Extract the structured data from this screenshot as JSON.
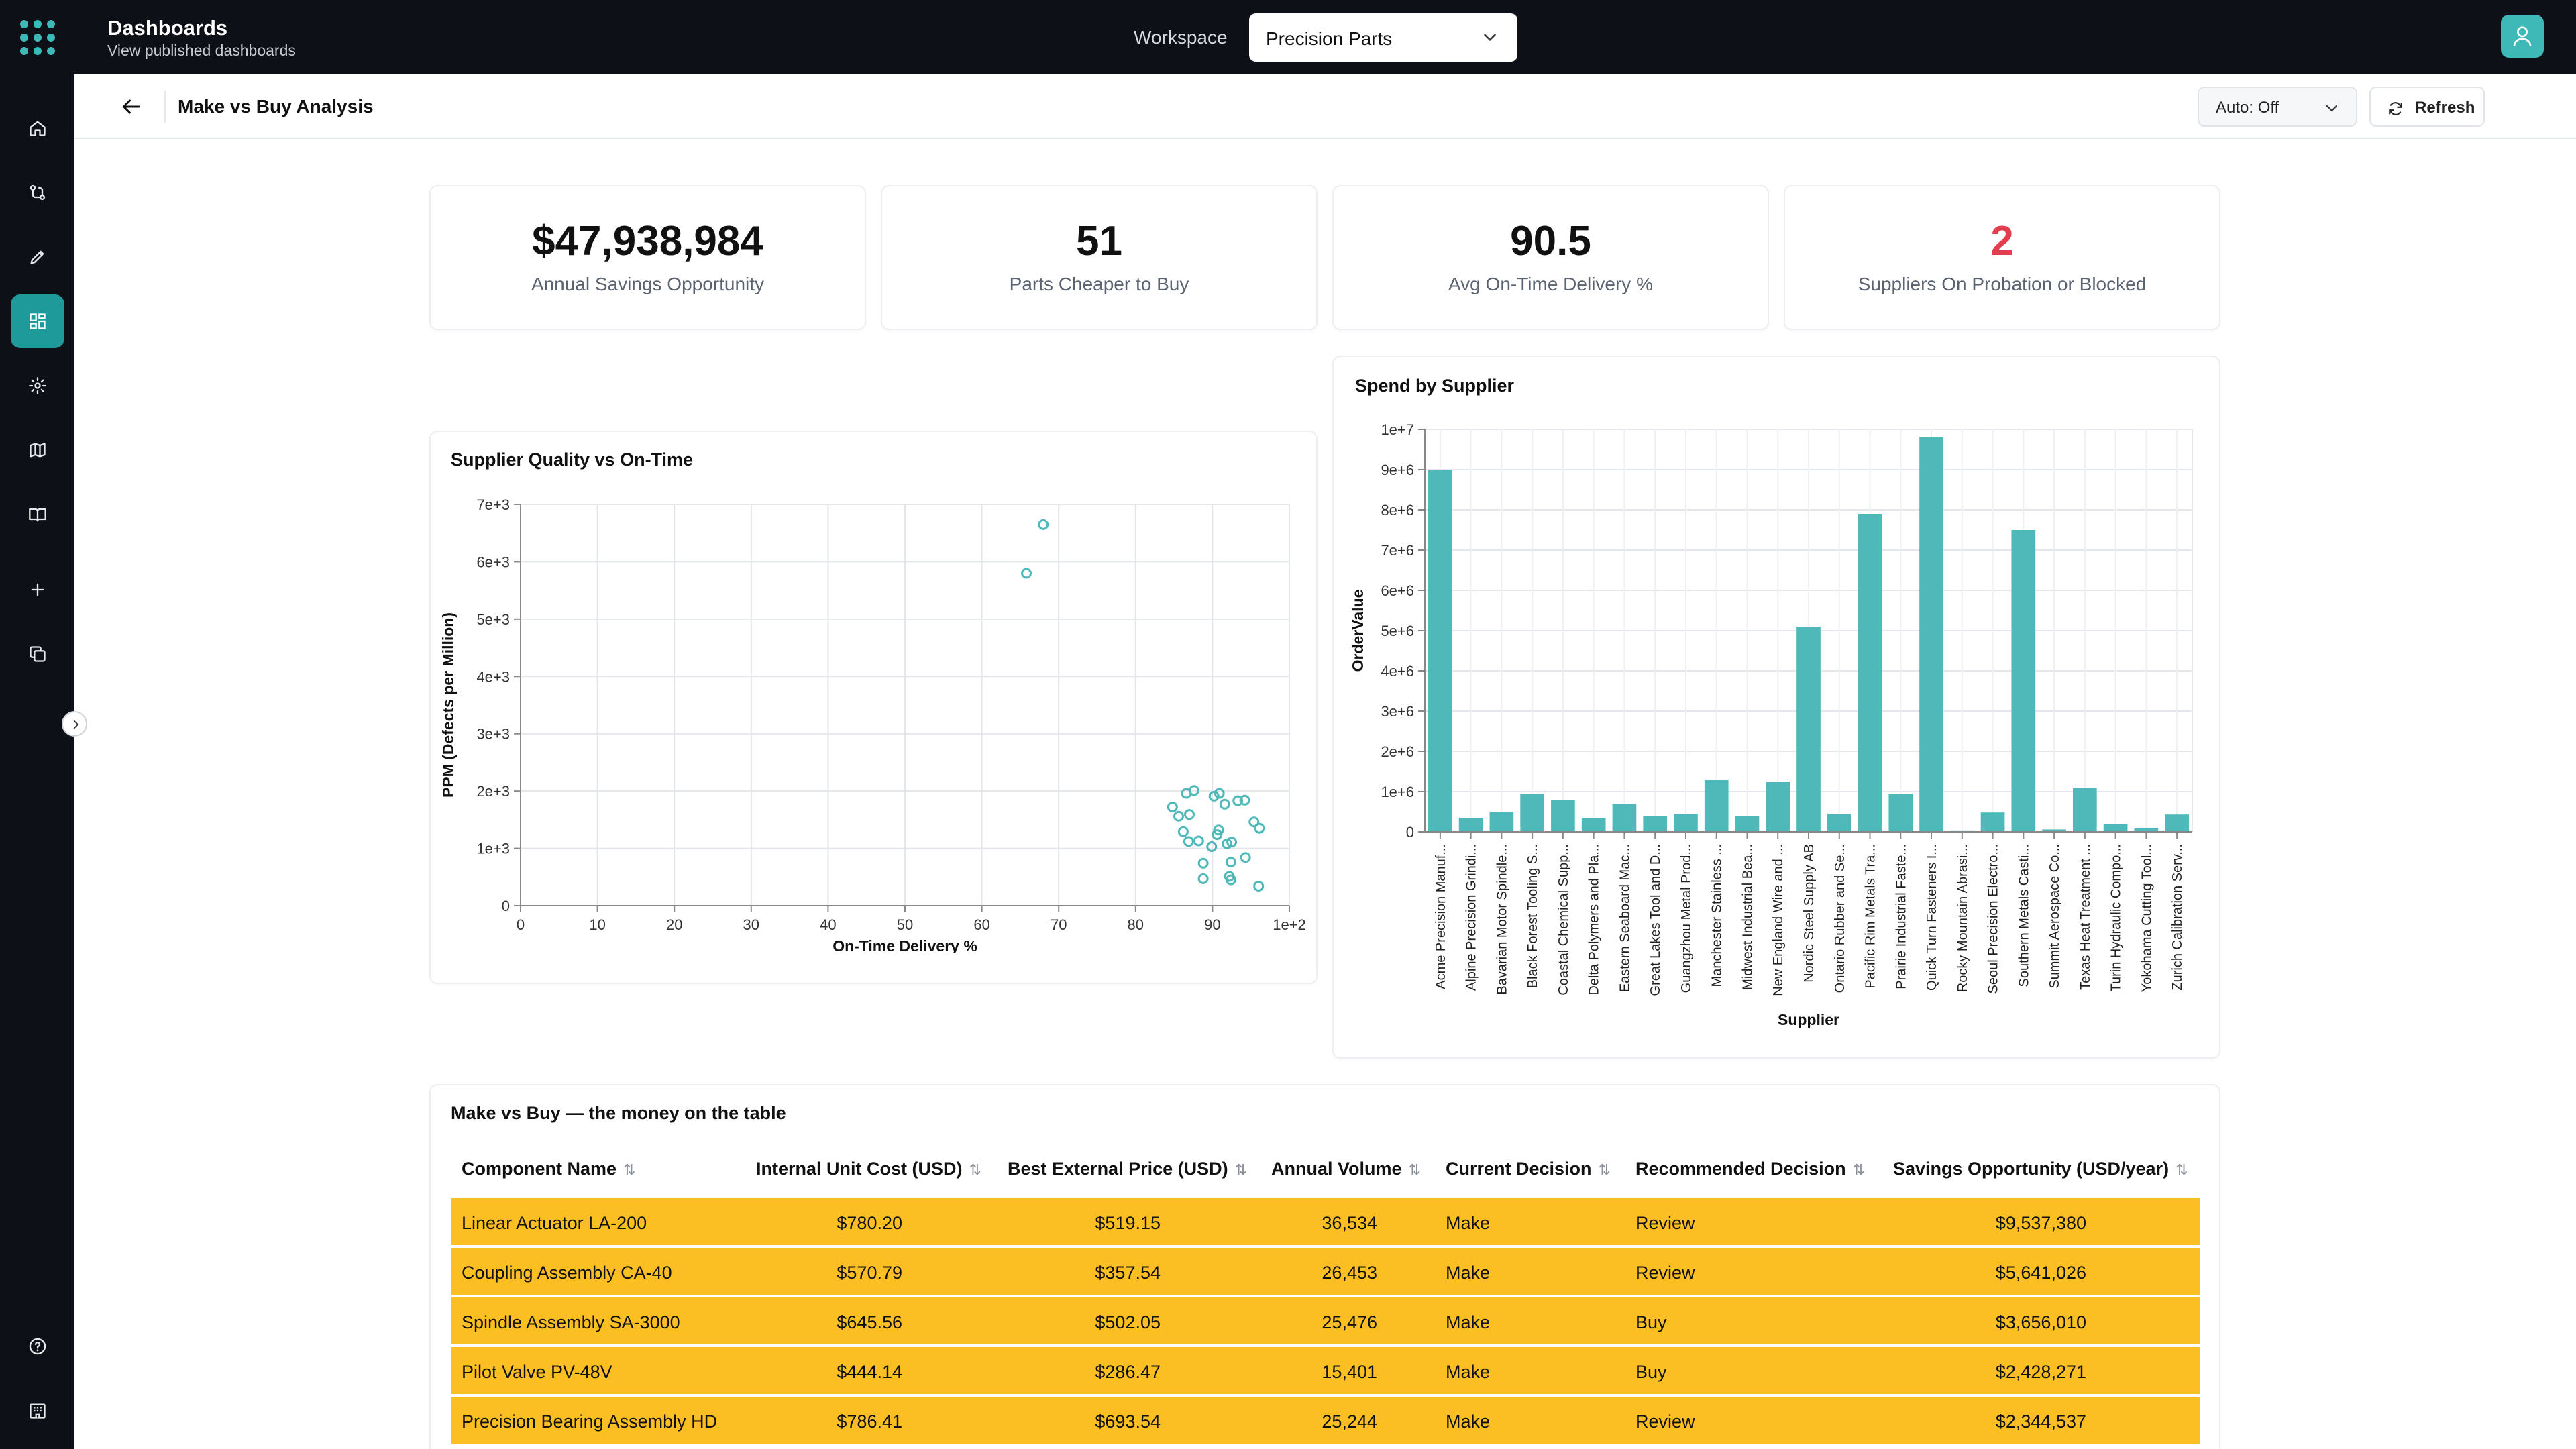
{
  "app": {
    "title": "Dashboards",
    "subtitle": "View published dashboards",
    "workspace_label": "Workspace",
    "workspace_value": "Precision Parts"
  },
  "sidebar": {
    "items": [
      {
        "name": "home-icon"
      },
      {
        "name": "flow-icon"
      },
      {
        "name": "pen-icon"
      },
      {
        "name": "dashboard-icon",
        "active": true
      },
      {
        "name": "gear-icon"
      },
      {
        "name": "map-icon"
      },
      {
        "name": "book-icon"
      },
      {
        "name": "plus-icon"
      },
      {
        "name": "copy-icon"
      }
    ],
    "bottom": [
      {
        "name": "help-icon"
      },
      {
        "name": "building-icon"
      }
    ]
  },
  "header": {
    "title": "Make vs Buy Analysis",
    "auto_refresh": "Auto: Off",
    "refresh_label": "Refresh"
  },
  "kpis": [
    {
      "value": "$47,938,984",
      "label": "Annual Savings Opportunity",
      "alert": false
    },
    {
      "value": "51",
      "label": "Parts Cheaper to Buy",
      "alert": false
    },
    {
      "value": "90.5",
      "label": "Avg On-Time Delivery %",
      "alert": false
    },
    {
      "value": "2",
      "label": "Suppliers On Probation or Blocked",
      "alert": true
    }
  ],
  "colors": {
    "accent": "#3fb8b8",
    "bar": "#4fb9b9",
    "alert": "#e03e4e",
    "row_highlight": "#fbbf24",
    "dark": "#0d1117"
  },
  "chart_data": [
    {
      "type": "scatter",
      "title": "Supplier Quality vs On-Time",
      "xlabel": "On-Time Delivery %",
      "ylabel": "PPM (Defects per Million)",
      "xlim": [
        0,
        100
      ],
      "ylim": [
        0,
        7000
      ],
      "x_ticks": [
        "0",
        "10",
        "20",
        "30",
        "40",
        "50",
        "60",
        "70",
        "80",
        "90",
        "1e+2"
      ],
      "y_ticks": [
        "0",
        "1e+3",
        "2e+3",
        "3e+3",
        "4e+3",
        "5e+3",
        "6e+3",
        "7e+3"
      ],
      "grid": true,
      "points": [
        {
          "x": 65.8,
          "y": 5800
        },
        {
          "x": 68.0,
          "y": 6650
        },
        {
          "x": 84.8,
          "y": 1720
        },
        {
          "x": 85.6,
          "y": 1560
        },
        {
          "x": 86.2,
          "y": 1290
        },
        {
          "x": 86.6,
          "y": 1960
        },
        {
          "x": 86.9,
          "y": 1120
        },
        {
          "x": 87.0,
          "y": 1590
        },
        {
          "x": 87.6,
          "y": 2010
        },
        {
          "x": 88.2,
          "y": 1130
        },
        {
          "x": 88.8,
          "y": 740
        },
        {
          "x": 88.8,
          "y": 470
        },
        {
          "x": 89.9,
          "y": 1030
        },
        {
          "x": 90.2,
          "y": 1910
        },
        {
          "x": 90.6,
          "y": 1240
        },
        {
          "x": 90.8,
          "y": 1320
        },
        {
          "x": 90.9,
          "y": 1960
        },
        {
          "x": 91.6,
          "y": 1770
        },
        {
          "x": 91.9,
          "y": 1080
        },
        {
          "x": 92.2,
          "y": 510
        },
        {
          "x": 92.4,
          "y": 450
        },
        {
          "x": 92.5,
          "y": 1110
        },
        {
          "x": 92.4,
          "y": 760
        },
        {
          "x": 93.3,
          "y": 1830
        },
        {
          "x": 94.2,
          "y": 1840
        },
        {
          "x": 94.3,
          "y": 840
        },
        {
          "x": 95.4,
          "y": 1460
        },
        {
          "x": 96.1,
          "y": 1350
        },
        {
          "x": 96.0,
          "y": 340
        }
      ]
    },
    {
      "type": "bar",
      "title": "Spend by Supplier",
      "xlabel": "Supplier",
      "ylabel": "OrderValue",
      "ylim": [
        0,
        10000000
      ],
      "y_ticks": [
        "0",
        "1e+6",
        "2e+6",
        "3e+6",
        "4e+6",
        "5e+6",
        "6e+6",
        "7e+6",
        "8e+6",
        "9e+6",
        "1e+7"
      ],
      "grid": true,
      "categories": [
        "Acme Precision Manuf...",
        "Alpine Precision Grindi...",
        "Bavarian Motor Spindle...",
        "Black Forest Tooling S...",
        "Coastal Chemical Supp...",
        "Delta Polymers and Pla...",
        "Eastern Seaboard Mac...",
        "Great Lakes Tool and D...",
        "Guangzhou Metal Prod...",
        "Manchester Stainless ...",
        "Midwest Industrial Bea...",
        "New England Wire and ...",
        "Nordic Steel Supply AB",
        "Ontario Rubber and Se...",
        "Pacific Rim Metals Tra...",
        "Prairie Industrial Faste...",
        "Quick Turn Fasteners I...",
        "Rocky Mountain Abrasi...",
        "Seoul Precision Electro...",
        "Southern Metals Casti...",
        "Summit Aerospace Co...",
        "Texas Heat Treatment ...",
        "Turin Hydraulic Compo...",
        "Yokohama Cutting Tool...",
        "Zurich Calibration Serv..."
      ],
      "values": [
        9000000,
        350000,
        500000,
        950000,
        800000,
        350000,
        700000,
        400000,
        450000,
        1300000,
        400000,
        1250000,
        5100000,
        450000,
        7900000,
        950000,
        9800000,
        20000,
        480000,
        7500000,
        60000,
        1100000,
        200000,
        100000,
        430000
      ]
    }
  ],
  "table": {
    "title": "Make vs Buy — the money on the table",
    "columns": [
      "Component Name",
      "Internal Unit Cost (USD)",
      "Best External Price (USD)",
      "Annual Volume",
      "Current Decision",
      "Recommended Decision",
      "Savings Opportunity (USD/year)"
    ],
    "sort_glyph": "⇅",
    "rows": [
      [
        "Linear Actuator LA-200",
        "$780.20",
        "$519.15",
        "36,534",
        "Make",
        "Review",
        "$9,537,380"
      ],
      [
        "Coupling Assembly CA-40",
        "$570.79",
        "$357.54",
        "26,453",
        "Make",
        "Review",
        "$5,641,026"
      ],
      [
        "Spindle Assembly SA-3000",
        "$645.56",
        "$502.05",
        "25,476",
        "Make",
        "Buy",
        "$3,656,010"
      ],
      [
        "Pilot Valve PV-48V",
        "$444.14",
        "$286.47",
        "15,401",
        "Make",
        "Buy",
        "$2,428,271"
      ],
      [
        "Precision Bearing Assembly HD",
        "$786.41",
        "$693.54",
        "25,244",
        "Make",
        "Review",
        "$2,344,537"
      ]
    ]
  }
}
